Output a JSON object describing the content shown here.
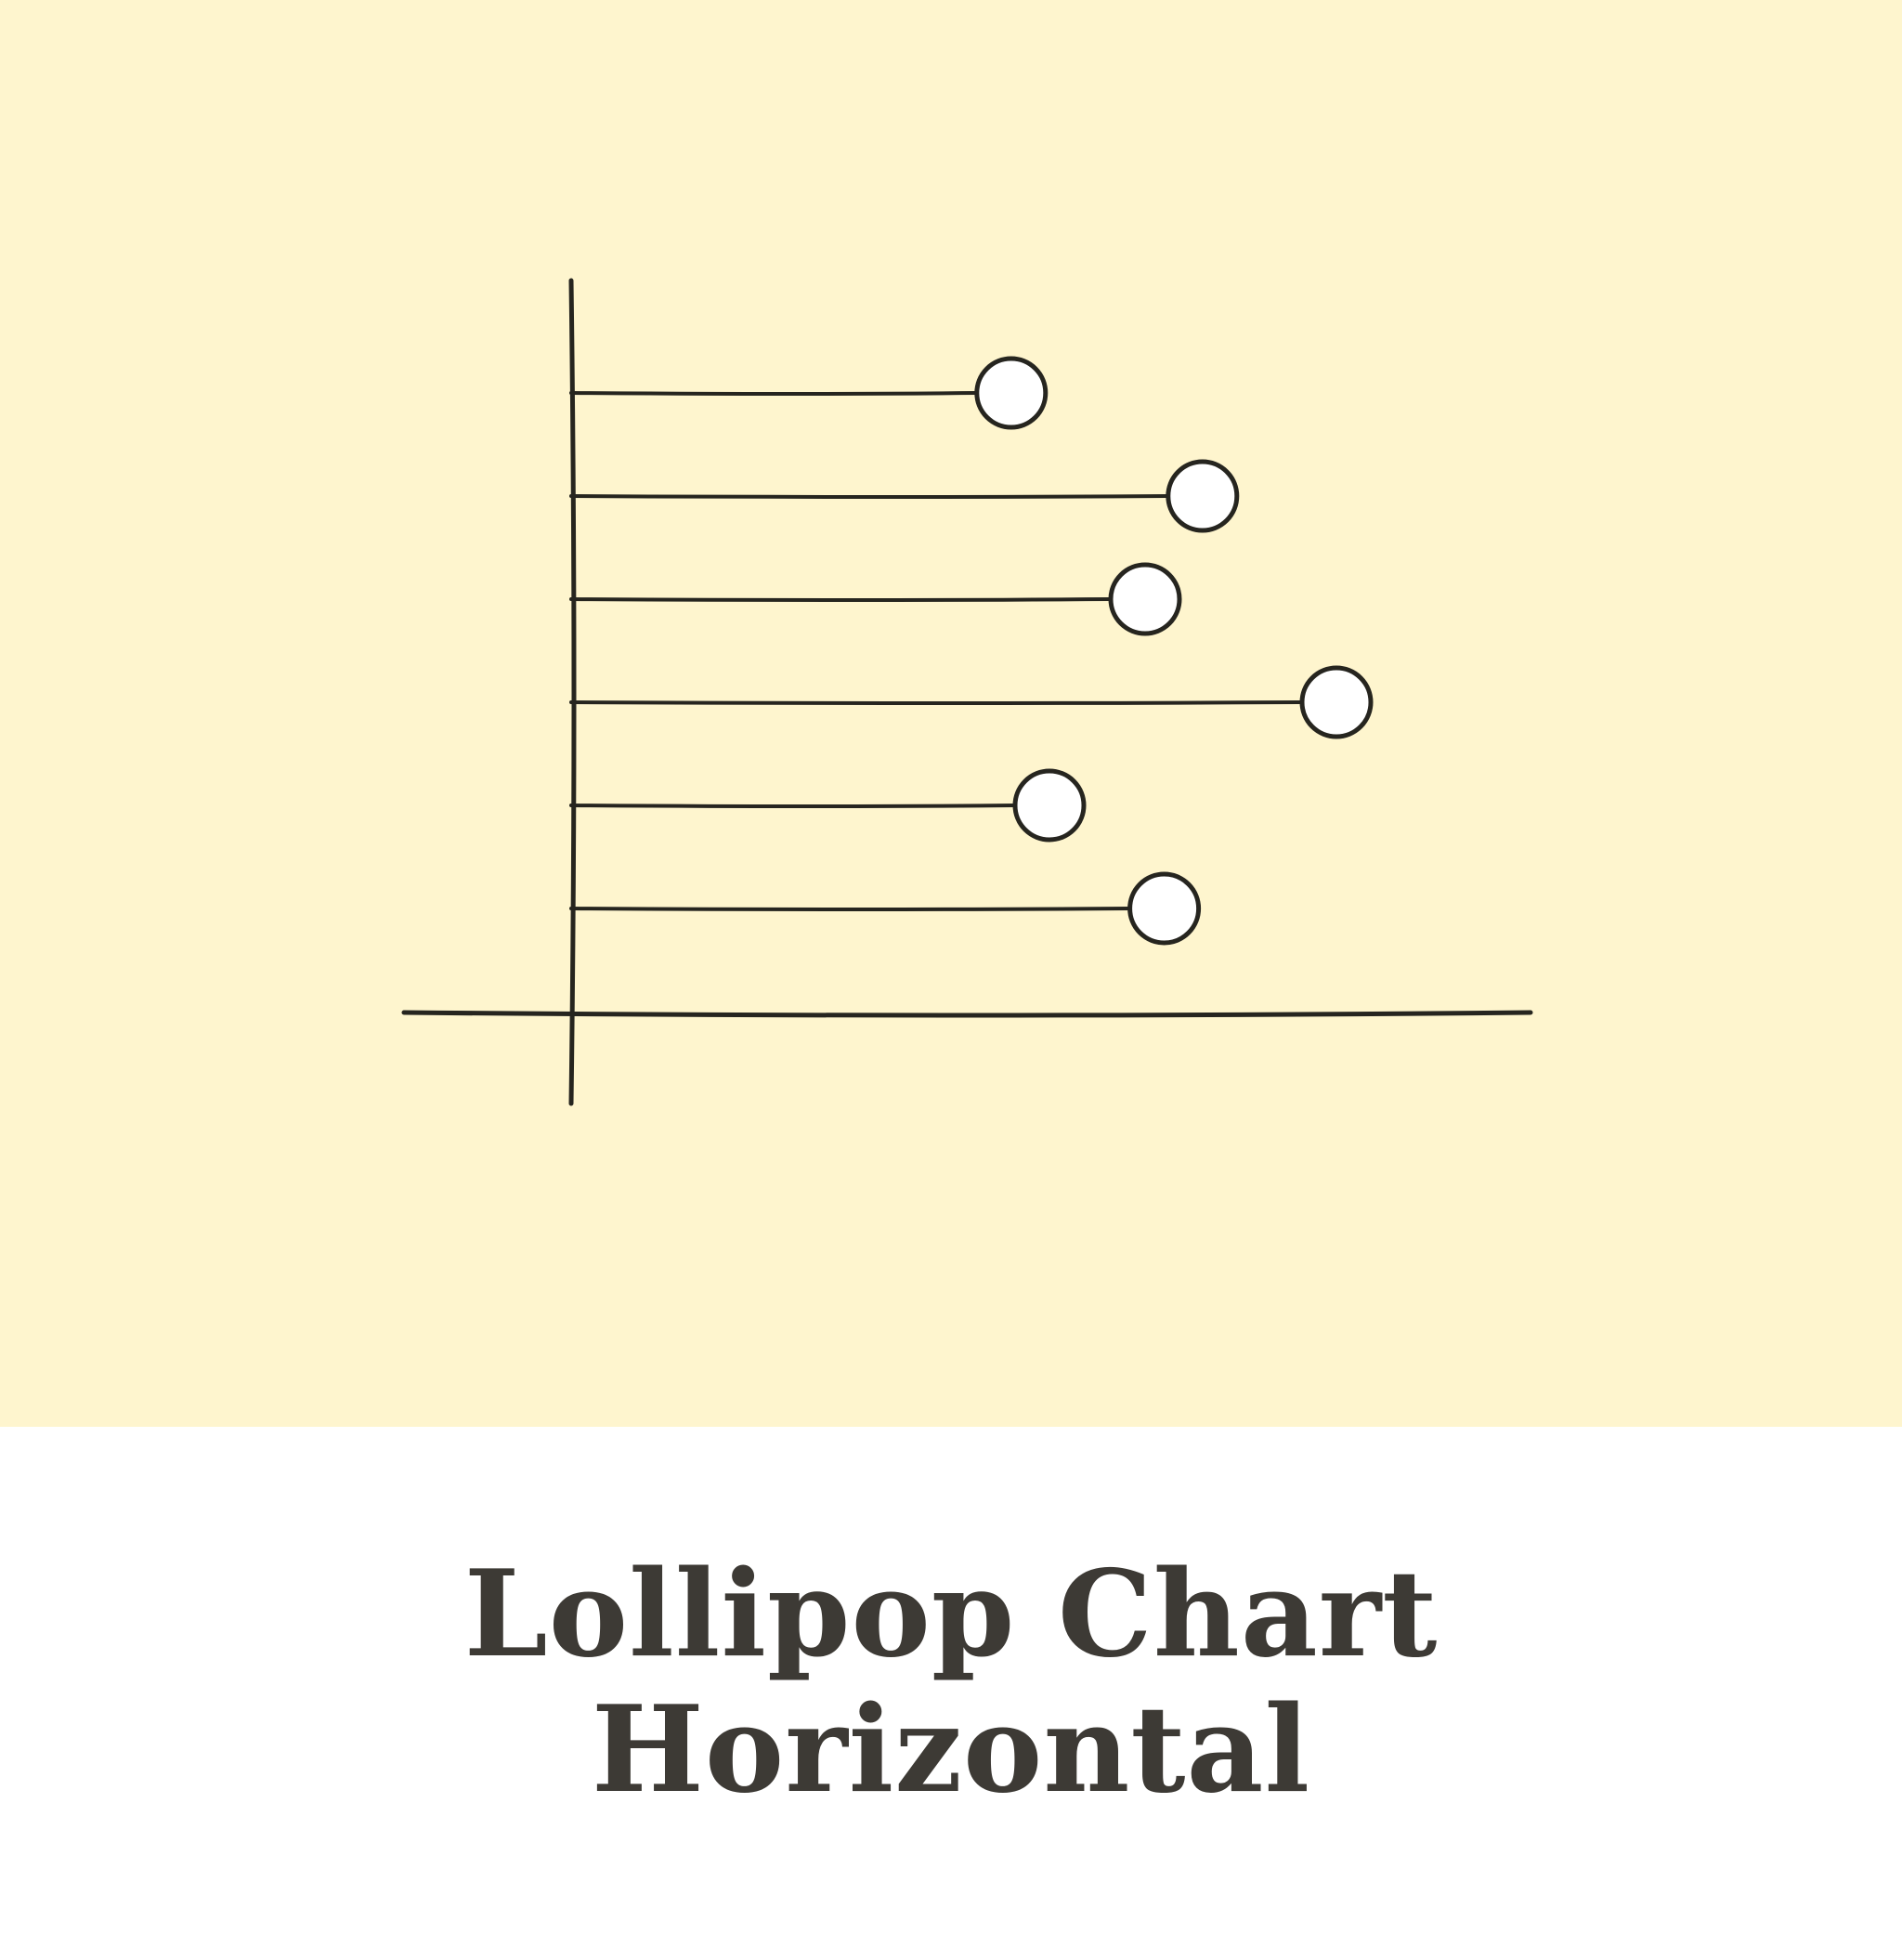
{
  "colors": {
    "background": "#FEF5CE",
    "ink": "#26251F",
    "marker_fill": "#FFFFFF",
    "caption_text": "#3D3A35"
  },
  "caption": {
    "line1": "Lollipop Chart",
    "line2": "Horizontal"
  },
  "chart_data": {
    "type": "lollipop",
    "orientation": "horizontal",
    "categories": [
      "",
      "",
      "",
      "",
      "",
      ""
    ],
    "values": [
      46,
      66,
      60,
      80,
      50,
      62
    ],
    "xlim": [
      0,
      100
    ],
    "grid": false,
    "legend": "none"
  }
}
